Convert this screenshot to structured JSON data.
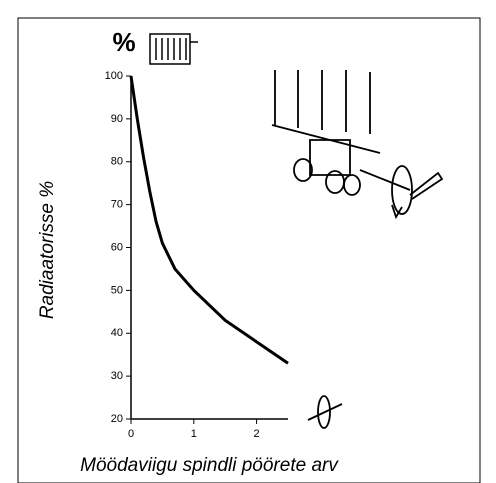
{
  "chart_data": {
    "type": "line",
    "title": "%",
    "y_label": "Radiaatorisse %",
    "x_label": "Möödaviigu spindli pöörete arv",
    "x": [
      0,
      0.1,
      0.2,
      0.3,
      0.4,
      0.5,
      0.7,
      1.0,
      1.5,
      2.0,
      2.5
    ],
    "series": [
      {
        "color": "#000000",
        "values": [
          100,
          90,
          81,
          73,
          66,
          61,
          55,
          50,
          43,
          38,
          33
        ]
      }
    ],
    "xlim": [
      0,
      2.5
    ],
    "xticks": [
      0,
      1,
      2
    ],
    "ylim": [
      20,
      100
    ],
    "yticks": [
      20,
      30,
      40,
      50,
      60,
      70,
      80,
      90,
      100
    ]
  }
}
